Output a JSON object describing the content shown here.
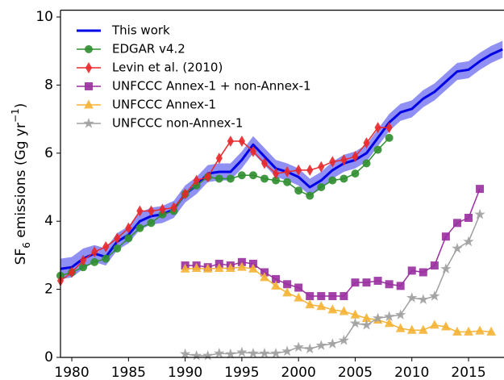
{
  "chart_data": {
    "type": "line",
    "ylabel": [
      "SF",
      "6",
      " emissions (Gg yr",
      "−1",
      ")"
    ],
    "xlim": [
      1979,
      2018.2
    ],
    "ylim": [
      0,
      10.2
    ],
    "xticks": [
      1980,
      1985,
      1990,
      1995,
      2000,
      2005,
      2010,
      2015
    ],
    "yticks": [
      0,
      2,
      4,
      6,
      8,
      10
    ],
    "legend": "upper left",
    "series": [
      {
        "name": "This work",
        "color": "#0000e6",
        "marker": "none",
        "band_color": "#6a6af0",
        "x": [
          1979,
          1980,
          1981,
          1982,
          1983,
          1984,
          1985,
          1986,
          1987,
          1988,
          1989,
          1990,
          1991,
          1992,
          1993,
          1994,
          1995,
          1996,
          1997,
          1998,
          1999,
          2000,
          2001,
          2002,
          2003,
          2004,
          2005,
          2006,
          2007,
          2008,
          2009,
          2010,
          2011,
          2012,
          2013,
          2014,
          2015,
          2016,
          2017,
          2018
        ],
        "values": [
          2.6,
          2.65,
          2.9,
          3.05,
          2.95,
          3.4,
          3.6,
          4.0,
          4.15,
          4.2,
          4.35,
          4.8,
          5.05,
          5.4,
          5.45,
          5.45,
          5.8,
          6.25,
          5.9,
          5.55,
          5.45,
          5.3,
          5.0,
          5.2,
          5.5,
          5.7,
          5.8,
          6.0,
          6.45,
          6.9,
          7.2,
          7.3,
          7.6,
          7.8,
          8.1,
          8.4,
          8.45,
          8.7,
          8.9,
          9.05
        ],
        "band_upper": [
          2.9,
          2.95,
          3.2,
          3.3,
          3.2,
          3.65,
          3.85,
          4.25,
          4.4,
          4.45,
          4.6,
          5.05,
          5.3,
          5.65,
          5.7,
          5.7,
          6.05,
          6.5,
          6.15,
          5.8,
          5.7,
          5.55,
          5.25,
          5.45,
          5.75,
          5.95,
          6.05,
          6.25,
          6.7,
          7.15,
          7.45,
          7.55,
          7.85,
          8.05,
          8.35,
          8.65,
          8.7,
          8.95,
          9.15,
          9.3
        ],
        "band_lower": [
          2.3,
          2.35,
          2.6,
          2.8,
          2.7,
          3.15,
          3.35,
          3.75,
          3.9,
          3.95,
          4.1,
          4.55,
          4.8,
          5.15,
          5.2,
          5.2,
          5.55,
          6.0,
          5.65,
          5.3,
          5.2,
          5.05,
          4.75,
          4.95,
          5.25,
          5.45,
          5.55,
          5.75,
          6.2,
          6.65,
          6.95,
          7.05,
          7.35,
          7.55,
          7.85,
          8.15,
          8.2,
          8.45,
          8.65,
          8.8
        ]
      },
      {
        "name": "EDGAR v4.2",
        "color": "#2f8f2f",
        "marker": "circle",
        "x": [
          1979,
          1980,
          1981,
          1982,
          1983,
          1984,
          1985,
          1986,
          1987,
          1988,
          1989,
          1990,
          1991,
          1992,
          1993,
          1994,
          1995,
          1996,
          1997,
          1998,
          1999,
          2000,
          2001,
          2002,
          2003,
          2004,
          2005,
          2006,
          2007,
          2008
        ],
        "values": [
          2.4,
          2.5,
          2.65,
          2.8,
          2.9,
          3.2,
          3.5,
          3.8,
          3.95,
          4.2,
          4.3,
          4.8,
          5.05,
          5.3,
          5.25,
          5.25,
          5.35,
          5.35,
          5.25,
          5.2,
          5.15,
          4.9,
          4.75,
          5.0,
          5.2,
          5.25,
          5.4,
          5.7,
          6.1,
          6.45
        ]
      },
      {
        "name": "Levin et al. (2010)",
        "color": "#e8282a",
        "marker": "diamond",
        "x": [
          1979,
          1980,
          1981,
          1982,
          1983,
          1984,
          1985,
          1986,
          1987,
          1988,
          1989,
          1990,
          1991,
          1992,
          1993,
          1994,
          1995,
          1996,
          1997,
          1998,
          1999,
          2000,
          2001,
          2002,
          2003,
          2004,
          2005,
          2006,
          2007,
          2008
        ],
        "values": [
          2.25,
          2.5,
          2.85,
          3.1,
          3.25,
          3.5,
          3.8,
          4.3,
          4.3,
          4.35,
          4.4,
          4.8,
          5.2,
          5.3,
          5.85,
          6.35,
          6.35,
          6.05,
          5.7,
          5.4,
          5.45,
          5.5,
          5.5,
          5.6,
          5.75,
          5.8,
          5.9,
          6.3,
          6.75,
          6.75
        ]
      },
      {
        "name": "UNFCCC Annex-1 + non-Annex-1",
        "color": "#9a2fa0",
        "marker": "square",
        "x": [
          1990,
          1991,
          1992,
          1993,
          1994,
          1995,
          1996,
          1997,
          1998,
          1999,
          2000,
          2001,
          2002,
          2003,
          2004,
          2005,
          2006,
          2007,
          2008,
          2009,
          2010,
          2011,
          2012,
          2013,
          2014,
          2015,
          2016
        ],
        "values": [
          2.7,
          2.7,
          2.65,
          2.75,
          2.7,
          2.8,
          2.75,
          2.5,
          2.3,
          2.15,
          2.05,
          1.8,
          1.8,
          1.8,
          1.8,
          2.2,
          2.2,
          2.25,
          2.15,
          2.1,
          2.55,
          2.5,
          2.7,
          3.55,
          3.95,
          4.1,
          4.95
        ]
      },
      {
        "name": "UNFCCC Annex-1",
        "color": "#f5b335",
        "marker": "triangle",
        "x": [
          1990,
          1991,
          1992,
          1993,
          1994,
          1995,
          1996,
          1997,
          1998,
          1999,
          2000,
          2001,
          2002,
          2003,
          2004,
          2005,
          2006,
          2007,
          2008,
          2009,
          2010,
          2011,
          2012,
          2013,
          2014,
          2015,
          2016,
          2017
        ],
        "values": [
          2.6,
          2.62,
          2.6,
          2.62,
          2.62,
          2.65,
          2.6,
          2.35,
          2.1,
          1.9,
          1.75,
          1.55,
          1.5,
          1.4,
          1.35,
          1.25,
          1.15,
          1.1,
          1.0,
          0.85,
          0.8,
          0.8,
          0.95,
          0.9,
          0.75,
          0.75,
          0.78,
          0.75
        ]
      },
      {
        "name": "UNFCCC non-Annex-1",
        "color": "#a0a0a0",
        "marker": "star",
        "x": [
          1990,
          1991,
          1992,
          1993,
          1994,
          1995,
          1996,
          1997,
          1998,
          1999,
          2000,
          2001,
          2002,
          2003,
          2004,
          2005,
          2006,
          2007,
          2008,
          2009,
          2010,
          2011,
          2012,
          2013,
          2014,
          2015,
          2016
        ],
        "values": [
          0.1,
          0.05,
          0.05,
          0.12,
          0.1,
          0.15,
          0.12,
          0.12,
          0.12,
          0.18,
          0.3,
          0.25,
          0.35,
          0.4,
          0.5,
          1.0,
          0.95,
          1.15,
          1.2,
          1.25,
          1.75,
          1.7,
          1.8,
          2.6,
          3.2,
          3.4,
          4.2
        ]
      }
    ]
  }
}
